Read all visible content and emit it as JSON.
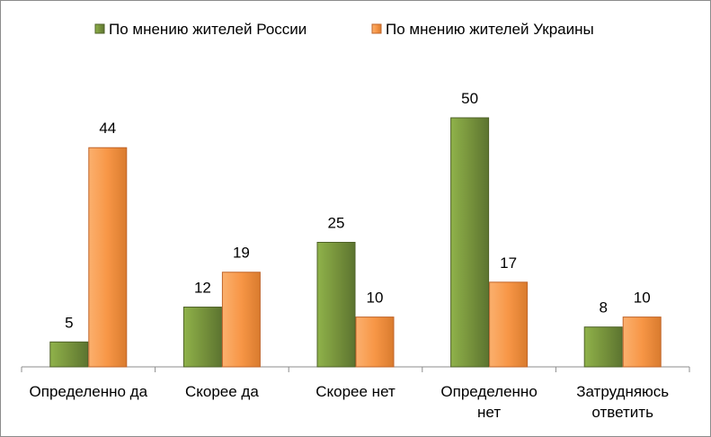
{
  "chart_data": {
    "type": "bar",
    "title": "",
    "xlabel": "",
    "ylabel": "",
    "ylim": [
      0,
      55
    ],
    "grid": false,
    "legend_position": "top-center",
    "categories": [
      [
        "Определенно да"
      ],
      [
        "Скорее да"
      ],
      [
        "Скорее нет"
      ],
      [
        "Определенно",
        "нет"
      ],
      [
        "Затрудняюсь",
        "ответить"
      ]
    ],
    "series": [
      {
        "name": "По мнению жителей России",
        "color": "#77933c",
        "values": [
          5,
          12,
          25,
          50,
          8
        ]
      },
      {
        "name": "По мнению жителей Украины",
        "color": "#f79646",
        "values": [
          44,
          19,
          10,
          17,
          10
        ]
      }
    ]
  }
}
